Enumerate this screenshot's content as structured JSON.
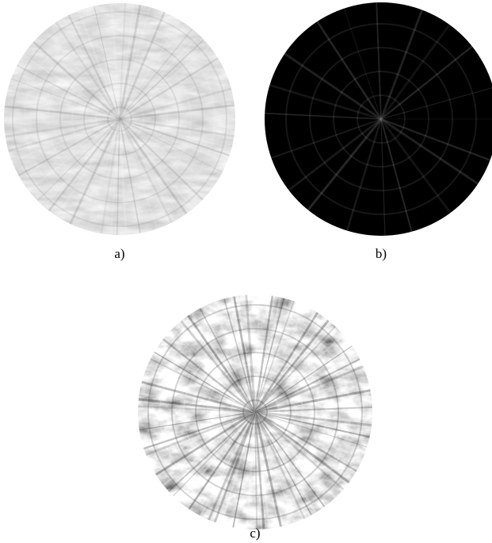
{
  "figure": {
    "panels": [
      {
        "label": "a)"
      },
      {
        "label": "b)"
      },
      {
        "label": "c)"
      }
    ]
  }
}
